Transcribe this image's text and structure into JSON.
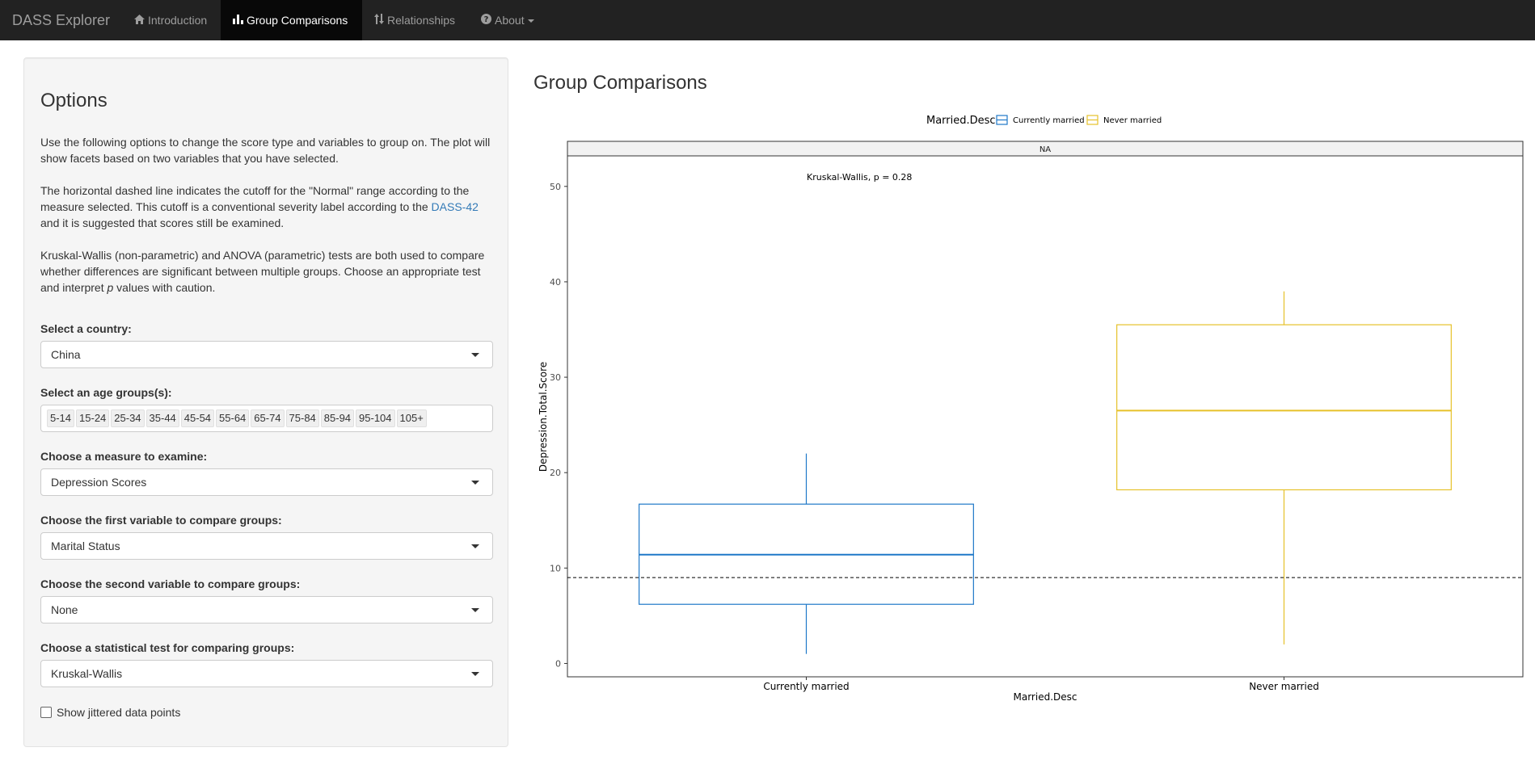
{
  "navbar": {
    "brand": "DASS Explorer",
    "items": [
      {
        "label": "Introduction",
        "icon": "home-icon"
      },
      {
        "label": "Group Comparisons",
        "icon": "bar-chart-icon",
        "active": true
      },
      {
        "label": "Relationships",
        "icon": "sort-icon"
      },
      {
        "label": "About",
        "icon": "question-circle-icon",
        "dropdown": true
      }
    ],
    "colors": {
      "background": "#222222",
      "active": "#080808",
      "text": "#9d9d9d"
    }
  },
  "sidebar": {
    "title": "Options",
    "para1": "Use the following options to change the score type and variables to group on. The plot will show facets based on two variables that you have selected.",
    "para2_before": "The horizontal dashed line indicates the cutoff for the \"Normal\" range according to the measure selected. This cutoff is a conventional severity label according to the ",
    "para2_link": "DASS-42",
    "para2_after": " and it is suggested that scores still be examined.",
    "para3_before": "Kruskal-Wallis (non-parametric) and ANOVA (parametric) tests are both used to compare whether differences are significant between multiple groups. Choose an appropriate test and interpret ",
    "para3_italic": "p",
    "para3_after": " values with caution.",
    "country": {
      "label": "Select a country:",
      "value": "China"
    },
    "age": {
      "label": "Select an age groups(s):",
      "chips": [
        "5-14",
        "15-24",
        "25-34",
        "35-44",
        "45-54",
        "55-64",
        "65-74",
        "75-84",
        "85-94",
        "95-104",
        "105+"
      ]
    },
    "measure": {
      "label": "Choose a measure to examine:",
      "value": "Depression Scores"
    },
    "var1": {
      "label": "Choose the first variable to compare groups:",
      "value": "Marital Status"
    },
    "var2": {
      "label": "Choose the second variable to compare groups:",
      "value": "None"
    },
    "test": {
      "label": "Choose a statistical test for comparing groups:",
      "value": "Kruskal-Wallis"
    },
    "jitter": {
      "label": "Show jittered data points",
      "checked": false
    }
  },
  "main": {
    "title": "Group Comparisons"
  },
  "chart_data": {
    "type": "boxplot",
    "legend_title": "Married.Desc",
    "legend_position": "top",
    "facet_label": "NA",
    "annotation": "Kruskal-Wallis, p = 0.28",
    "xlabel": "Married.Desc",
    "ylabel": "Depression.Total.Score",
    "ylim": [
      -1.4,
      53.2
    ],
    "yticks": [
      0,
      10,
      20,
      30,
      40,
      50
    ],
    "cutoff_line": 9,
    "series": [
      {
        "name": "Currently married",
        "color": "#1f78c8",
        "min": 1,
        "q1": 6.2,
        "median": 11.4,
        "q3": 16.7,
        "max": 22
      },
      {
        "name": "Never married",
        "color": "#e6c12a",
        "min": 2,
        "q1": 18.2,
        "median": 26.5,
        "q3": 35.5,
        "max": 39
      }
    ]
  }
}
